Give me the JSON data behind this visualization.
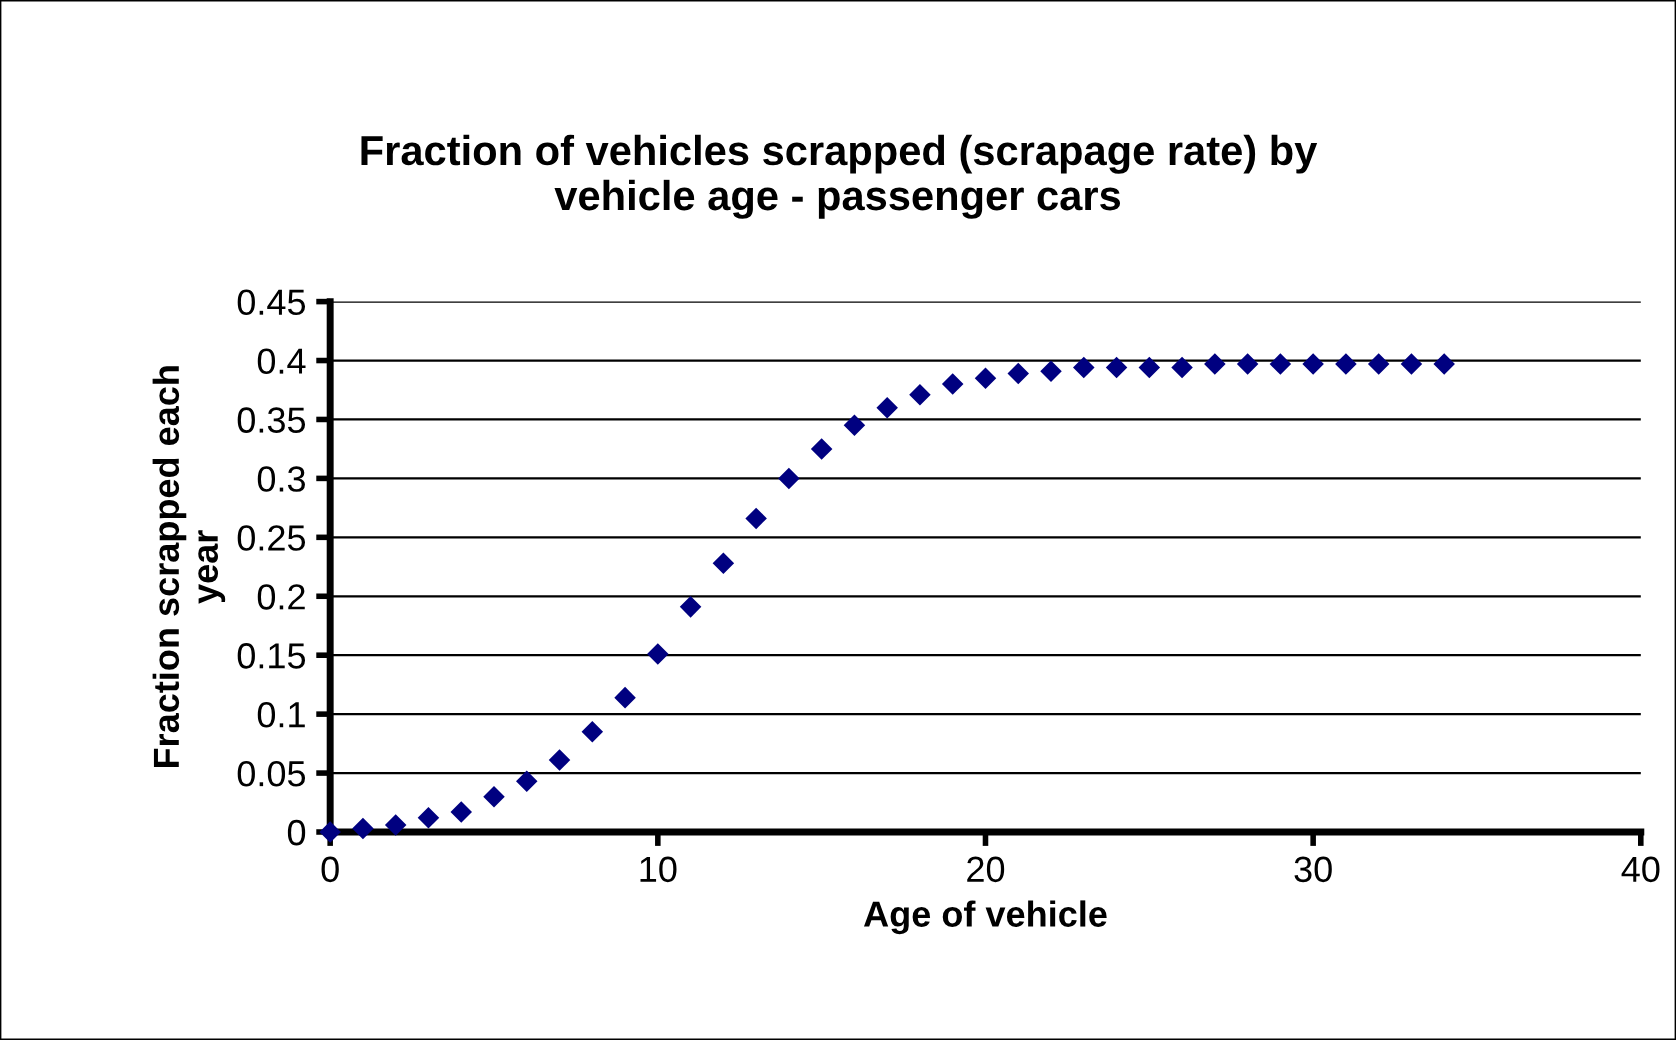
{
  "chart_data": {
    "type": "scatter",
    "title": "Fraction of vehicles scrapped (scrapage rate) by\nvehicle age - passenger cars",
    "xlabel": "Age of vehicle",
    "ylabel": "Fraction scrapped each\nyear",
    "x": [
      0,
      1,
      2,
      3,
      4,
      5,
      6,
      7,
      8,
      9,
      10,
      11,
      12,
      13,
      14,
      15,
      16,
      17,
      18,
      19,
      20,
      21,
      22,
      23,
      24,
      25,
      26,
      27,
      28,
      29,
      30,
      31,
      32,
      33,
      34
    ],
    "values": [
      0,
      0.003,
      0.006,
      0.012,
      0.017,
      0.03,
      0.043,
      0.061,
      0.085,
      0.114,
      0.151,
      0.191,
      0.228,
      0.266,
      0.3,
      0.325,
      0.345,
      0.36,
      0.371,
      0.38,
      0.385,
      0.389,
      0.391,
      0.394,
      0.394,
      0.394,
      0.394,
      0.397,
      0.397,
      0.397,
      0.397,
      0.397,
      0.397,
      0.397,
      0.397
    ],
    "color": "#000080",
    "marker": "diamond",
    "xlim": [
      0,
      40
    ],
    "xticks": [
      0,
      10,
      20,
      30,
      40
    ],
    "ylim": [
      0,
      0.45
    ],
    "yticks": [
      0,
      0.05,
      0.1,
      0.15,
      0.2,
      0.25,
      0.3,
      0.35,
      0.4,
      0.45
    ],
    "grid": "y",
    "legend": false
  }
}
